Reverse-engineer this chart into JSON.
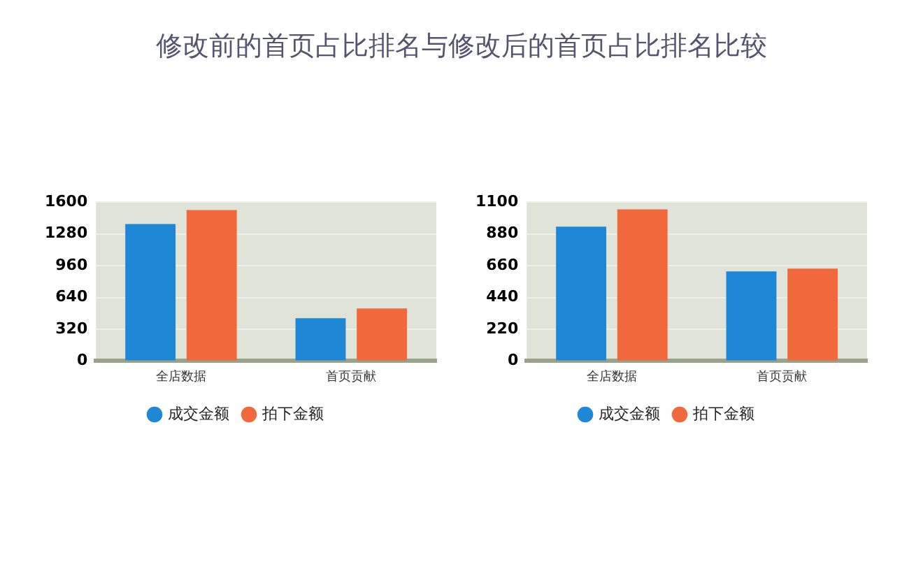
{
  "chart_data": [
    {
      "type": "bar",
      "title": "修改前的首页占比排名与修改后的首页占比排名比较",
      "categories": [
        "全店数据",
        "首页贡献"
      ],
      "series": [
        {
          "name": "成交金额",
          "color": "#1e88d6",
          "values": [
            1380,
            430
          ]
        },
        {
          "name": "拍下金额",
          "color": "#f0683c",
          "values": [
            1520,
            530
          ]
        }
      ],
      "ylim": [
        0,
        1600
      ],
      "yticks": [
        0,
        320,
        640,
        960,
        1280,
        1600
      ],
      "grid": "y",
      "legend": "bottom"
    },
    {
      "type": "bar",
      "categories": [
        "全店数据",
        "首页贡献"
      ],
      "series": [
        {
          "name": "成交金额",
          "color": "#1e88d6",
          "values": [
            930,
            620
          ]
        },
        {
          "name": "拍下金额",
          "color": "#f0683c",
          "values": [
            1050,
            640
          ]
        }
      ],
      "ylim": [
        0,
        1100
      ],
      "yticks": [
        0,
        220,
        440,
        660,
        880,
        1100
      ],
      "grid": "y",
      "legend": "bottom"
    }
  ]
}
